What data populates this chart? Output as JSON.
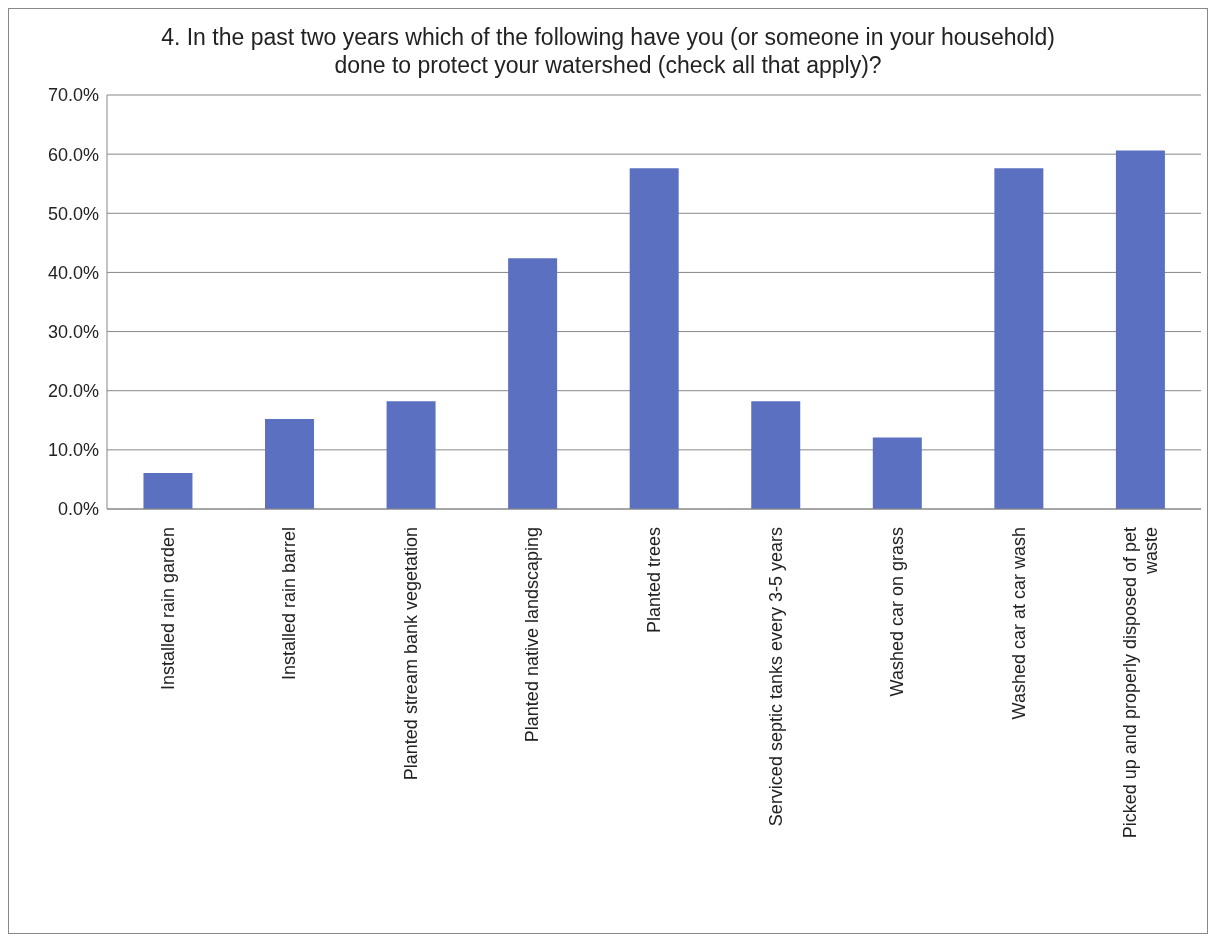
{
  "chart_data": {
    "type": "bar",
    "title": "4. In the past two years which of the following have you (or someone in your household) done to protect your watershed (check all that apply)?",
    "categories": [
      "Installed rain garden",
      "Installed rain barrel",
      "Planted stream bank vegetation",
      "Planted native landscaping",
      "Planted trees",
      "Serviced septic tanks every 3-5 years",
      "Washed car on grass",
      "Washed car at car wash",
      "Picked up and properly disposed of pet waste"
    ],
    "values": [
      6.1,
      15.2,
      18.2,
      42.4,
      57.6,
      18.2,
      12.1,
      57.6,
      60.6
    ],
    "color": "#5b70c0",
    "ylim": [
      0,
      70
    ],
    "yticks": [
      {
        "value": 0,
        "label": "0.0%"
      },
      {
        "value": 10,
        "label": "10.0%"
      },
      {
        "value": 20,
        "label": "20.0%"
      },
      {
        "value": 30,
        "label": "30.0%"
      },
      {
        "value": 40,
        "label": "40.0%"
      },
      {
        "value": 50,
        "label": "50.0%"
      },
      {
        "value": 60,
        "label": "60.0%"
      },
      {
        "value": 70,
        "label": "70.0%"
      }
    ],
    "grid": "y"
  }
}
